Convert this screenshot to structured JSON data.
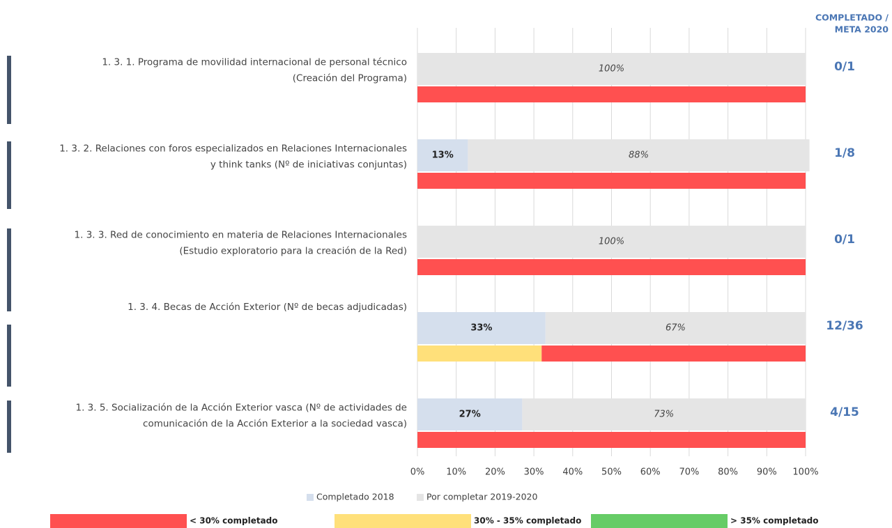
{
  "chart_data": {
    "type": "stacked-barh",
    "right_header": [
      "COMPLETADO /",
      "META 2020"
    ],
    "categories": [
      [
        "1. 3. 1. Programa de movilidad internacional de personal técnico",
        "(Creación del Programa)"
      ],
      [
        "1. 3. 2. Relaciones con foros especializados en Relaciones Internacionales",
        "y think tanks (Nº de iniciativas conjuntas)"
      ],
      [
        "1. 3. 3. Red de conocimiento en materia de Relaciones Internacionales",
        "(Estudio exploratorio para la creación de la Red)"
      ],
      [
        "1. 3. 4. Becas de Acción Exterior (Nº de becas adjudicadas)"
      ],
      [
        "1. 3. 5. Socialización de la Acción Exterior vasca (Nº de actividades de",
        "comunicación de la Acción Exterior a la sociedad vasca)"
      ]
    ],
    "series": [
      {
        "name": "Completado 2018",
        "color": "#d5dfed",
        "values": [
          0,
          13,
          0,
          33,
          27
        ],
        "value_labels": [
          null,
          "13%",
          null,
          "33%",
          "27%"
        ]
      },
      {
        "name": "Por completar 2019-2020",
        "color": "#e5e5e5",
        "values": [
          100,
          88,
          100,
          67,
          73
        ],
        "value_labels": [
          "100%",
          "88%",
          "100%",
          "67%",
          "73%"
        ]
      }
    ],
    "ratios": [
      "0/1",
      "1/8",
      "0/1",
      "12/36",
      "4/15"
    ],
    "status_bars": [
      [
        {
          "color": "#ff5050",
          "value": 100
        }
      ],
      [
        {
          "color": "#ff5050",
          "value": 100
        }
      ],
      [
        {
          "color": "#ff5050",
          "value": 100
        }
      ],
      [
        {
          "color": "#ffe07a",
          "value": 32
        },
        {
          "color": "#ff5050",
          "value": 68
        }
      ],
      [
        {
          "color": "#ff5050",
          "value": 100
        }
      ]
    ],
    "status_legend": [
      {
        "label": "< 30% completado",
        "color": "#ff5050"
      },
      {
        "label": "30% - 35% completado",
        "color": "#ffe07a"
      },
      {
        "label": "> 35% completado",
        "color": "#66cc66"
      }
    ],
    "xlim": [
      0,
      100
    ],
    "xticks": [
      {
        "value": 0,
        "label": "0%"
      },
      {
        "value": 10,
        "label": "10%"
      },
      {
        "value": 20,
        "label": "20%"
      },
      {
        "value": 30,
        "label": "30%"
      },
      {
        "value": 40,
        "label": "40%"
      },
      {
        "value": 50,
        "label": "50%"
      },
      {
        "value": 60,
        "label": "60%"
      },
      {
        "value": 70,
        "label": "70%"
      },
      {
        "value": 80,
        "label": "80%"
      },
      {
        "value": 90,
        "label": "90%"
      },
      {
        "value": 100,
        "label": "100%"
      }
    ],
    "grid": true
  }
}
